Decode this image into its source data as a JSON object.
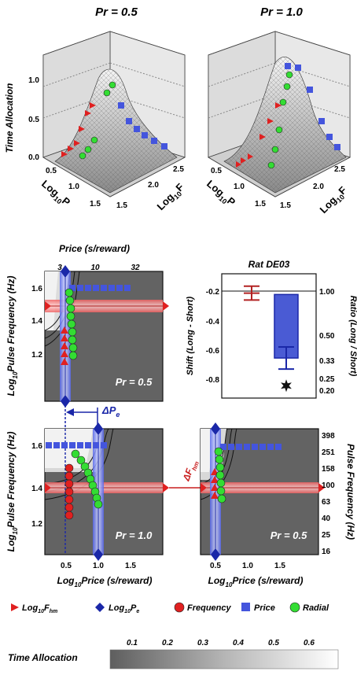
{
  "top": {
    "left_title": "Pr = 0.5",
    "right_title": "Pr = 1.0",
    "z_label": "Time Allocation",
    "z_ticks": [
      "1.0",
      "0.5",
      "0.0"
    ],
    "p_ticks": [
      "0.5",
      "1.0",
      "1.5"
    ],
    "f_ticks": [
      "2.5",
      "2.0",
      "1.5"
    ],
    "logP_label": "Log",
    "logP_sub": "10",
    "logP_var": "P",
    "logF_label": "Log",
    "logF_sub": "10",
    "logF_var": "F"
  },
  "panel_a": {
    "top_axis_title": "Price (s/reward)",
    "top_ticks": [
      "3",
      "10",
      "32"
    ],
    "y_ticks": [
      "1.6",
      "1.4",
      "1.2"
    ],
    "pr_label": "Pr = 0.5"
  },
  "panel_b": {
    "title": "Rat DE03",
    "y_label": "Shift (Long - Short)",
    "right_label": "Ratio (Long / Short)",
    "y_ticks": [
      "-0.2",
      "-0.4",
      "-0.6",
      "-0.8"
    ],
    "right_ticks": [
      "1.00",
      "0.50",
      "0.33",
      "0.25",
      "0.20"
    ],
    "chart_data": {
      "type": "bar",
      "categories": [
        "",
        ""
      ],
      "values": [
        -0.19,
        -0.66
      ],
      "error": [
        0.05,
        0.08
      ],
      "ylim": [
        -0.95,
        -0.05
      ],
      "colors": [
        "#b22222",
        "#4a5bd4"
      ],
      "annotation": "star"
    }
  },
  "panel_c": {
    "y_ticks": [
      "1.6",
      "1.4",
      "1.2"
    ],
    "x_ticks": [
      "0.5",
      "1.0",
      "1.5"
    ],
    "pr_label": "Pr = 1.0"
  },
  "panel_d": {
    "x_ticks": [
      "0.5",
      "1.0",
      "1.5"
    ],
    "right_ticks": [
      "398",
      "251",
      "158",
      "100",
      "63",
      "40",
      "25",
      "16"
    ],
    "right_label": "Pulse Frequency (Hz)",
    "pr_label": "Pr = 0.5"
  },
  "labels": {
    "y_label_log": "Log",
    "y_label_sub": "10",
    "y_label_var": "Pulse Frequency (Hz)",
    "x_label_log": "Log",
    "x_label_sub": "10",
    "x_label_var": "Price (s/reward)",
    "delta_pe": "ΔP",
    "delta_pe_sub": "e",
    "delta_fhm": "ΔF",
    "delta_fhm_sub": "hm"
  },
  "legend": {
    "fhm": "Log",
    "fhm_sub": "10",
    "fhm_var": "F",
    "fhm_var_sub": "hm",
    "pe": "Log",
    "pe_sub": "10",
    "pe_var": "P",
    "pe_var_sub": "e",
    "frequency": "Frequency",
    "price": "Price",
    "radial": "Radial"
  },
  "colorbar": {
    "label": "Time Allocation",
    "ticks": [
      "0.1",
      "0.2",
      "0.3",
      "0.4",
      "0.5",
      "0.6"
    ]
  },
  "colors": {
    "red": "#e02020",
    "blue": "#4455dd",
    "green": "#33dd33",
    "dark_gray": "#636363"
  }
}
